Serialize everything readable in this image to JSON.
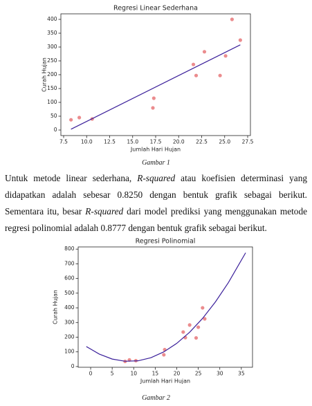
{
  "chart_data": [
    {
      "type": "scatter",
      "title": "Regresi Linear Sederhana",
      "xlabel": "Jumlah Hari Hujan",
      "ylabel": "Curah Hujan",
      "xlim": [
        7.2,
        27.8
      ],
      "ylim": [
        -20,
        420
      ],
      "xticks": [
        7.5,
        {
          "value": 10,
          "label": "10.0"
        },
        12.5,
        {
          "value": 15,
          "label": "15.0"
        },
        17.5,
        {
          "value": 20,
          "label": "20.0"
        },
        22.5,
        {
          "value": 25,
          "label": "25.0"
        },
        27.5
      ],
      "yticks": [
        0,
        50,
        100,
        150,
        200,
        250,
        300,
        350,
        400
      ],
      "grid": false,
      "series": [
        {
          "type": "scatter",
          "color": "#e8787a",
          "x": [
            8.3,
            9.2,
            10.6,
            17.2,
            17.3,
            21.6,
            21.9,
            22.8,
            24.5,
            25.1,
            25.8,
            26.7
          ],
          "values": [
            37,
            45,
            40,
            80,
            115,
            237,
            197,
            283,
            197,
            268,
            400,
            325
          ]
        },
        {
          "type": "line",
          "color": "#3a1f9a",
          "x": [
            8.3,
            26.7
          ],
          "values": [
            3,
            308
          ]
        }
      ]
    },
    {
      "type": "scatter",
      "title": "Regresi Polinomial",
      "xlabel": "Jumlah Hari Hujan",
      "ylabel": "Curah Hujan",
      "xlim": [
        -2.9,
        37.6
      ],
      "ylim": [
        -5,
        815
      ],
      "xticks": [
        0,
        5,
        10,
        15,
        20,
        25,
        30,
        35
      ],
      "yticks": [
        0,
        100,
        200,
        300,
        400,
        500,
        600,
        700,
        800
      ],
      "grid": false,
      "series": [
        {
          "type": "scatter",
          "color": "#e8787a",
          "x": [
            8,
            9,
            10.5,
            17,
            17.2,
            21.5,
            22,
            23,
            24.5,
            25,
            26,
            26.5
          ],
          "values": [
            35,
            45,
            40,
            80,
            115,
            235,
            197,
            283,
            195,
            268,
            400,
            325
          ]
        },
        {
          "type": "line",
          "color": "#3a1f9a",
          "x": [
            -1,
            2,
            5,
            8,
            11,
            14,
            17,
            20,
            23,
            26,
            29,
            32,
            36
          ],
          "values": [
            136,
            85,
            51,
            36,
            39,
            60,
            100,
            158,
            234,
            328,
            441,
            572,
            775
          ]
        }
      ]
    }
  ],
  "captions": [
    "Gambar 1",
    "Gambar 2"
  ],
  "paragraph": [
    "Untuk metode linear sederhana, ",
    "R-squared",
    " atau koefisien determinasi yang didapatkan adalah sebesar 0.8250 dengan bentuk grafik sebagai berikut. Sementara itu, besar ",
    "R-squared",
    " dari model prediksi yang menggunakan metode regresi polinomial adalah 0.8777 dengan bentuk grafik sebagai berikut."
  ]
}
